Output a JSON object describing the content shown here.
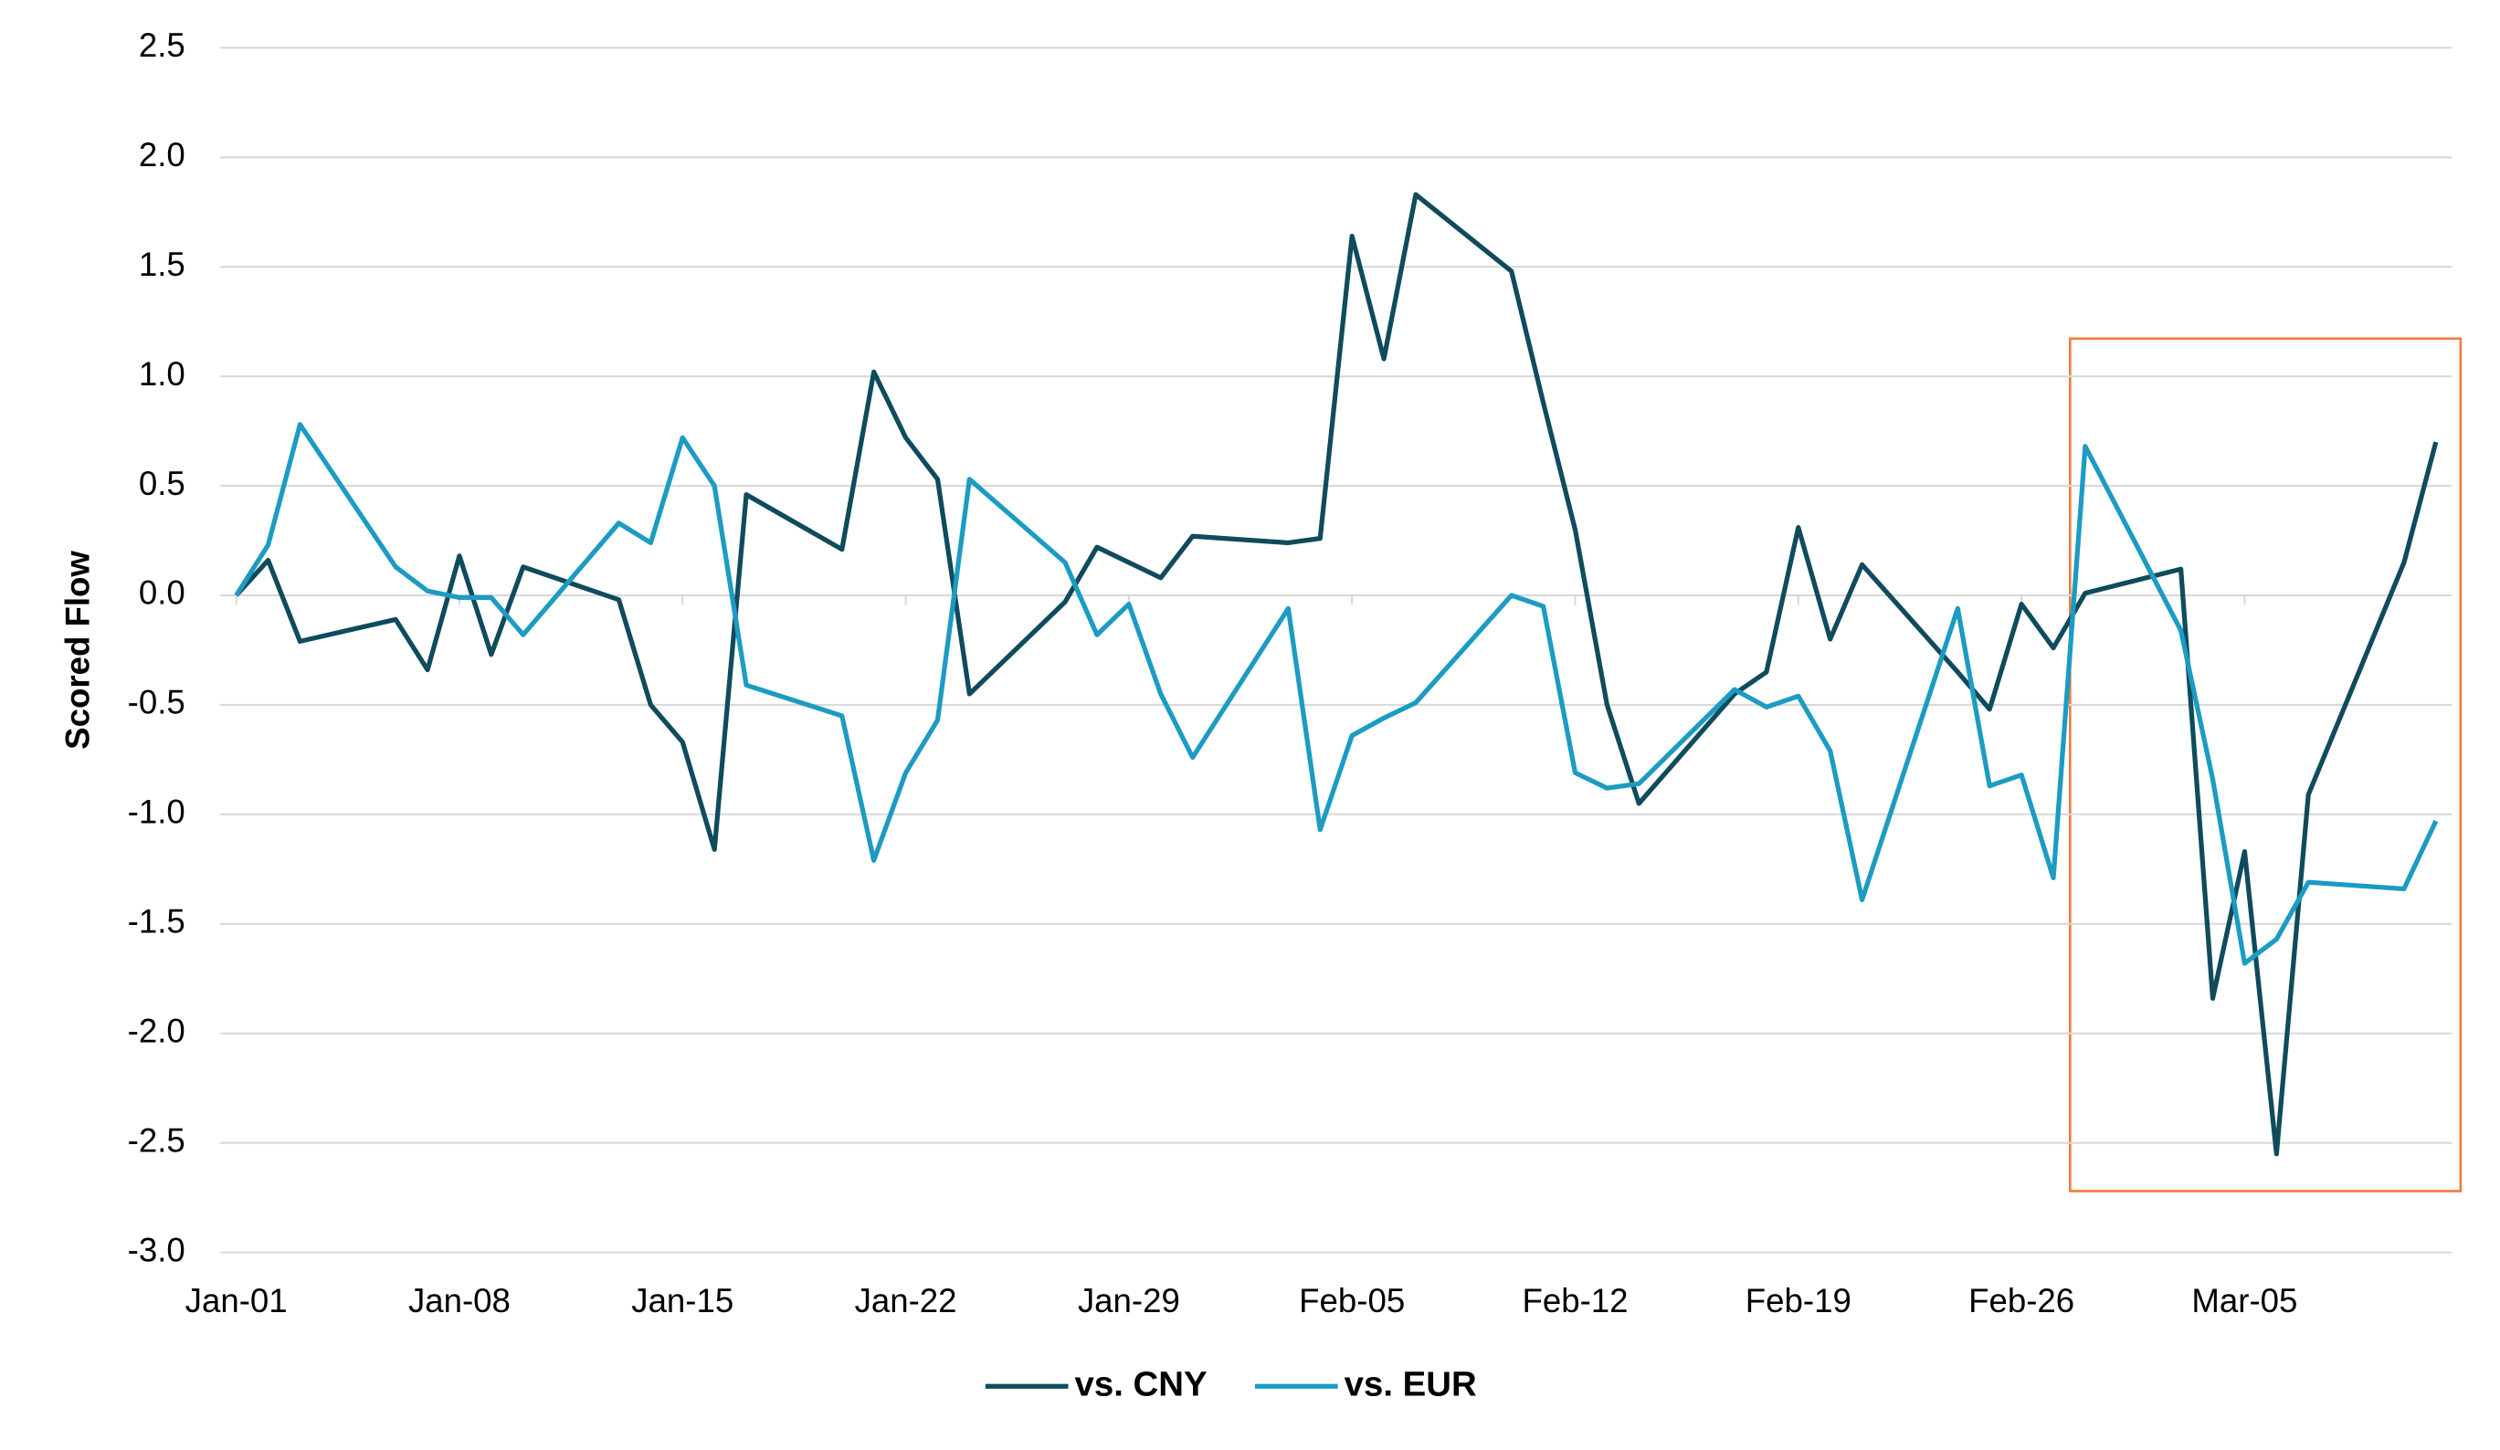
{
  "chart_data": {
    "type": "line",
    "y_label": "Scored Flow",
    "x": [
      "Jan-01",
      "Jan-02",
      "Jan-03",
      "Jan-06",
      "Jan-07",
      "Jan-08",
      "Jan-09",
      "Jan-10",
      "Jan-13",
      "Jan-14",
      "Jan-15",
      "Jan-16",
      "Jan-17",
      "Jan-20",
      "Jan-21",
      "Jan-22",
      "Jan-23",
      "Jan-24",
      "Jan-27",
      "Jan-28",
      "Jan-29",
      "Jan-30",
      "Jan-31",
      "Feb-03",
      "Feb-04",
      "Feb-05",
      "Feb-06",
      "Feb-07",
      "Feb-10",
      "Feb-11",
      "Feb-12",
      "Feb-13",
      "Feb-14",
      "Feb-17",
      "Feb-18",
      "Feb-19",
      "Feb-20",
      "Feb-21",
      "Feb-24",
      "Feb-25",
      "Feb-26",
      "Feb-27",
      "Feb-28",
      "Mar-03",
      "Mar-04",
      "Mar-05",
      "Mar-06",
      "Mar-07",
      "Mar-10",
      "Mar-11"
    ],
    "xticks": [
      "Jan-01",
      "Jan-08",
      "Jan-15",
      "Jan-22",
      "Jan-29",
      "Feb-05",
      "Feb-12",
      "Feb-19",
      "Feb-26",
      "Mar-05"
    ],
    "series": [
      {
        "name": "vs. CNY",
        "color": "#0f4b5d",
        "values": [
          0,
          0.16,
          -0.21,
          -0.11,
          -0.34,
          0.18,
          -0.27,
          0.13,
          -0.02,
          -0.5,
          -0.67,
          -1.16,
          0.46,
          0.21,
          1.02,
          0.72,
          0.53,
          -0.45,
          -0.03,
          0.22,
          0.15,
          0.08,
          0.27,
          0.24,
          0.26,
          1.64,
          1.08,
          1.83,
          1.48,
          0.88,
          0.3,
          -0.5,
          -0.95,
          -0.45,
          -0.35,
          0.31,
          -0.2,
          0.14,
          -0.35,
          -0.52,
          -0.04,
          -0.24,
          0.01,
          0.12,
          -1.84,
          -1.17,
          -2.55,
          -0.91,
          0.15,
          0.7
        ]
      },
      {
        "name": "vs. EUR",
        "color": "#1c9bc3",
        "values": [
          0,
          0.23,
          0.78,
          0.13,
          0.02,
          -0.01,
          -0.01,
          -0.18,
          0.33,
          0.24,
          0.72,
          0.5,
          -0.41,
          -0.55,
          -1.21,
          -0.81,
          -0.57,
          0.53,
          0.15,
          -0.18,
          -0.04,
          -0.45,
          -0.74,
          -0.06,
          -1.07,
          -0.64,
          -0.56,
          -0.49,
          0.0,
          -0.05,
          -0.81,
          -0.88,
          -0.86,
          -0.43,
          -0.51,
          -0.46,
          -0.71,
          -1.39,
          -0.06,
          -0.87,
          -0.82,
          -1.29,
          0.68,
          -0.16,
          -0.84,
          -1.68,
          -1.57,
          -1.31,
          -1.34,
          -1.03
        ]
      }
    ],
    "ylim": [
      -3,
      2.5
    ],
    "yticks": [
      {
        "value": -3,
        "label": "-3.0"
      },
      -2.5,
      {
        "value": -2,
        "label": "-2.0"
      },
      -1.5,
      {
        "value": -1,
        "label": "-1.0"
      },
      -0.5,
      {
        "value": 0,
        "label": "0.0"
      },
      0.5,
      {
        "value": 1,
        "label": "1.0"
      },
      1.5,
      {
        "value": 2,
        "label": "2.0"
      },
      2.5
    ],
    "grid": true,
    "legend": "bottom"
  }
}
